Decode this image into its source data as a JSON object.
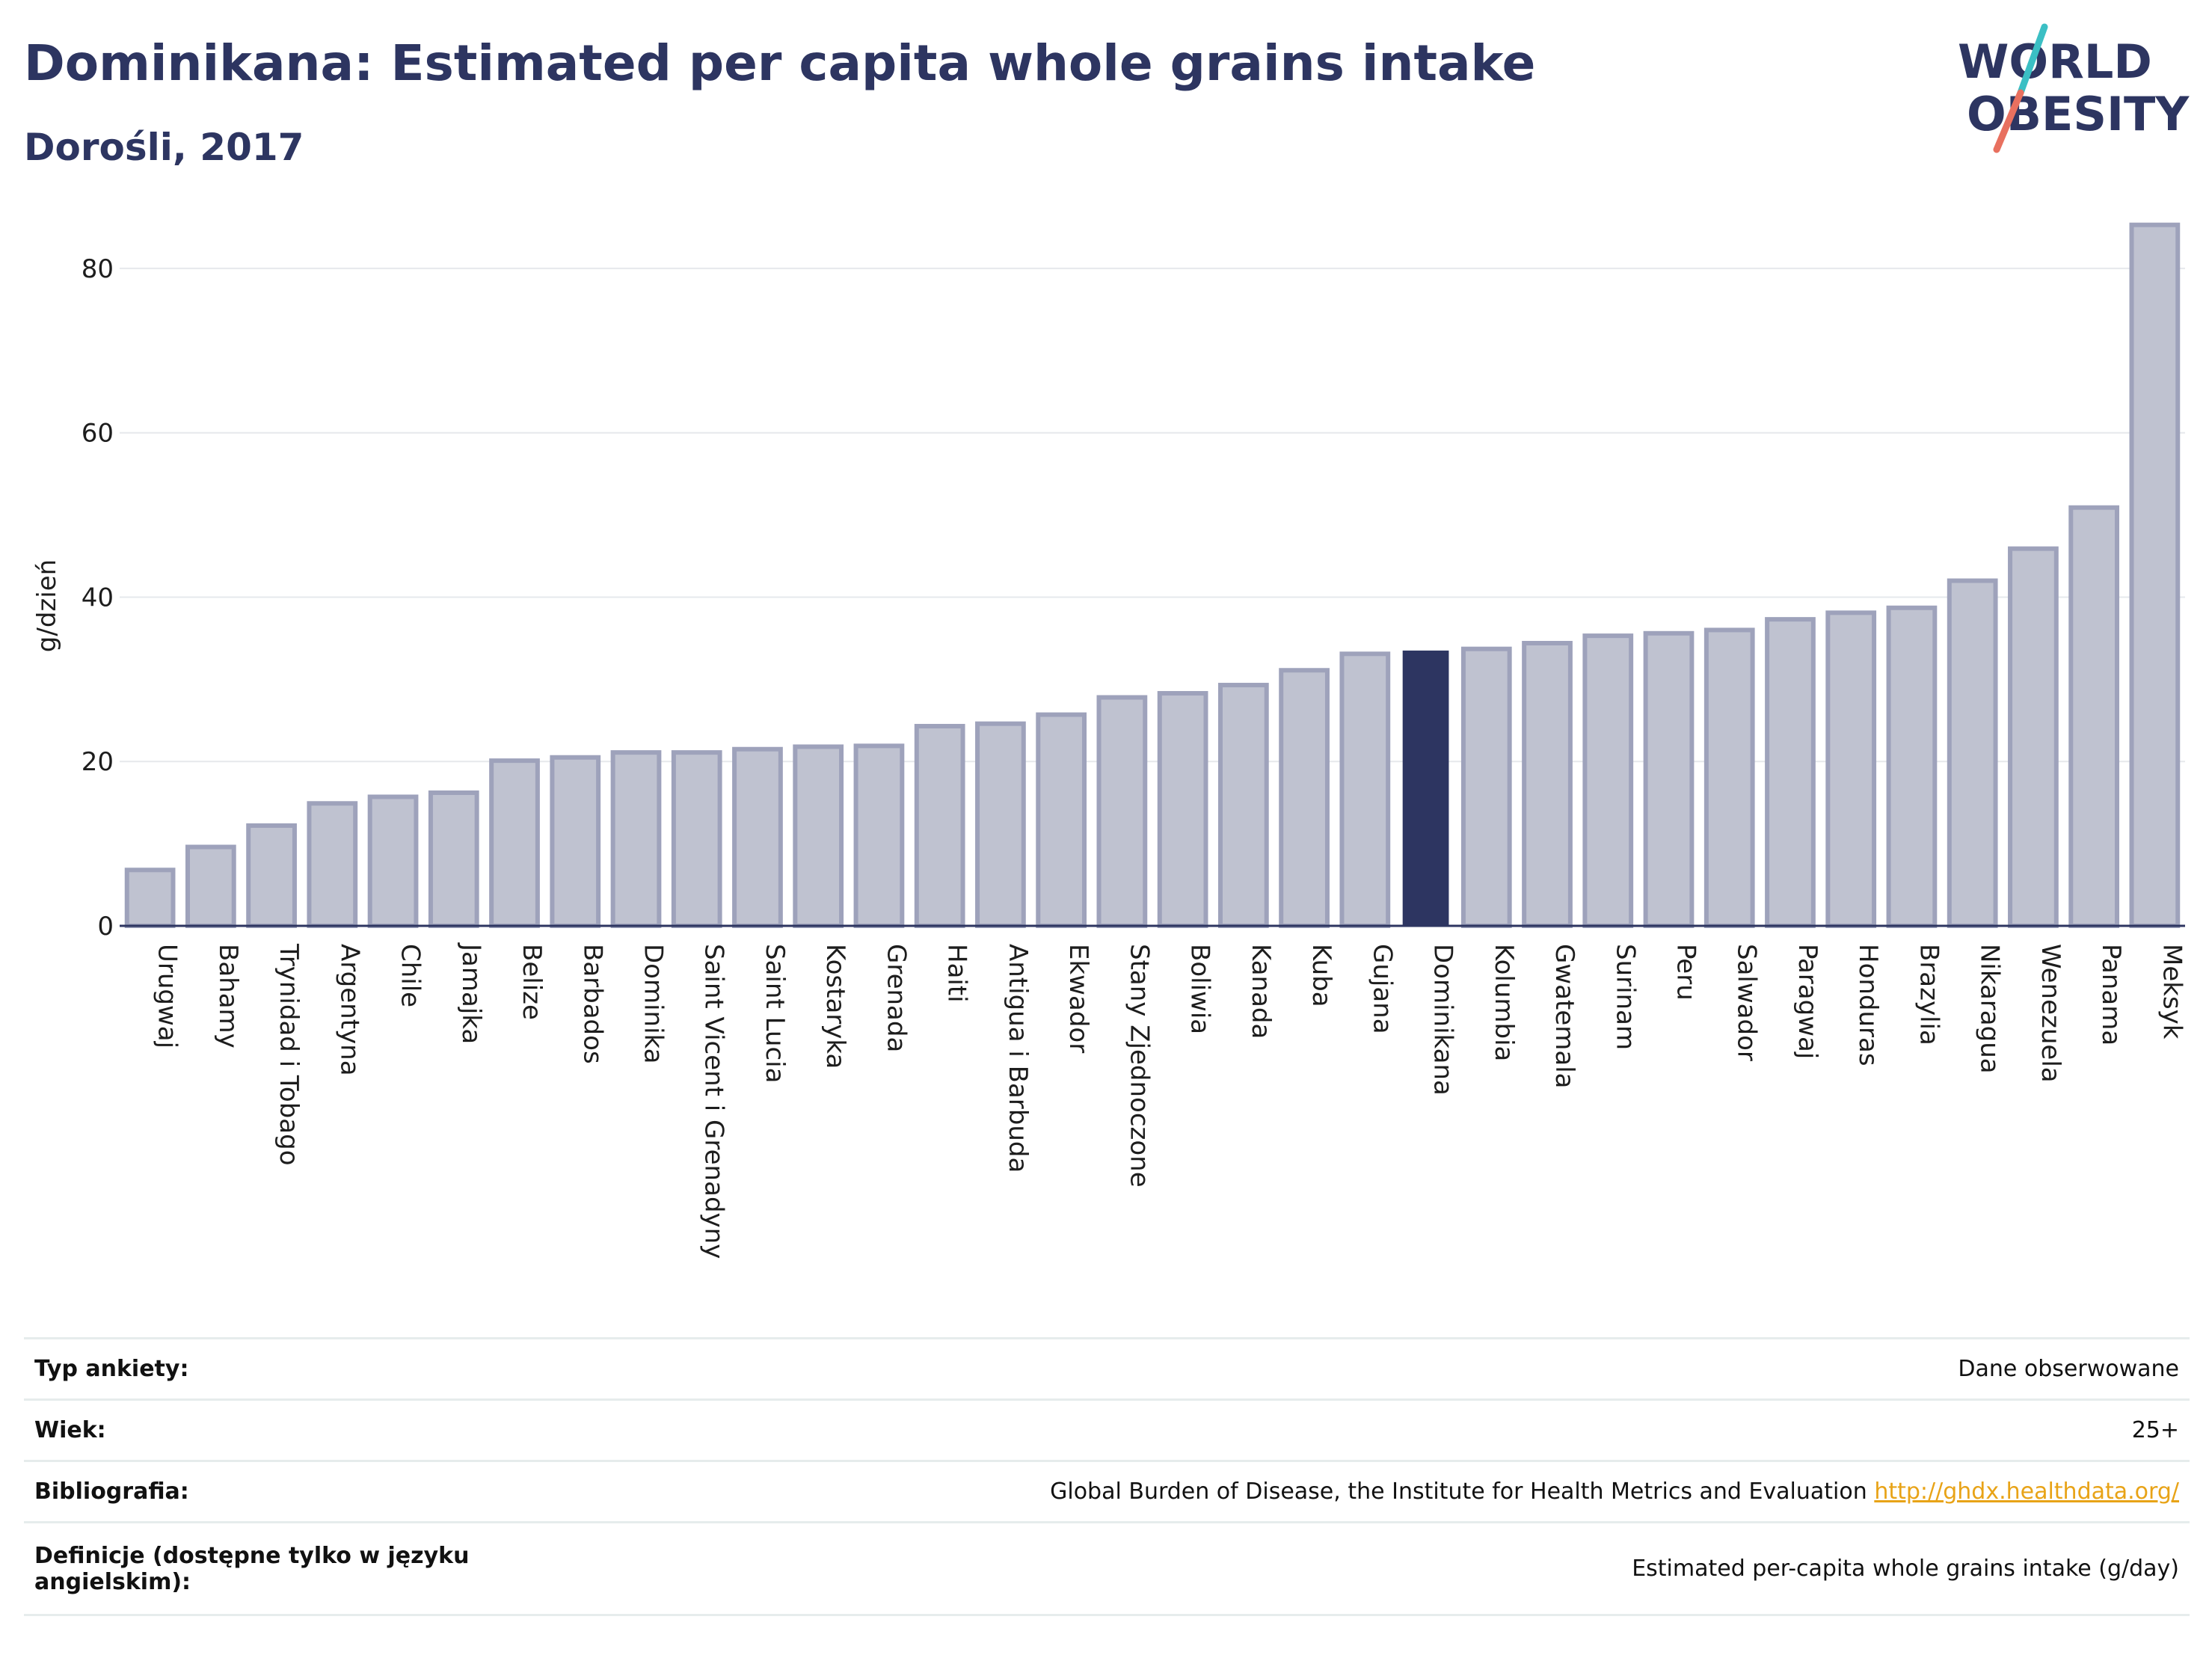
{
  "header": {
    "title": "Dominikana: Estimated per capita whole grains intake",
    "subtitle": "Dorośli, 2017"
  },
  "logo": {
    "line1": "WORLD",
    "line2": "OBESITY",
    "colors": {
      "text": "#2d3561",
      "slash_teal": "#3bbfc4",
      "slash_coral": "#e8705f"
    }
  },
  "chart_data": {
    "type": "bar",
    "ylabel": "g/dzień",
    "ylim": [
      0,
      87
    ],
    "yticks": [
      0,
      20,
      40,
      60,
      80
    ],
    "grid": true,
    "highlight": "Dominikana",
    "colors": {
      "bar": "#bfc2d0",
      "bar_stroke": "#9ea2bb",
      "highlight": "#2d3561",
      "grid": "#e6e8ec",
      "axis": "#2d3561"
    },
    "categories": [
      "Urugwaj",
      "Bahamy",
      "Trynidad i Tobago",
      "Argentyna",
      "Chile",
      "Jamajka",
      "Belize",
      "Barbados",
      "Dominika",
      "Saint Vicent i Grenadyny",
      "Saint Lucia",
      "Kostaryka",
      "Grenada",
      "Haiti",
      "Antigua i Barbuda",
      "Ekwador",
      "Stany Zjednoczone",
      "Boliwia",
      "Kanada",
      "Kuba",
      "Gujana",
      "Dominikana",
      "Kolumbia",
      "Gwatemala",
      "Surinam",
      "Peru",
      "Salwador",
      "Paragwaj",
      "Honduras",
      "Brazylia",
      "Nikaragua",
      "Wenezuela",
      "Panama",
      "Meksyk"
    ],
    "values": [
      6.8,
      9.6,
      12.2,
      14.9,
      15.7,
      16.2,
      20.1,
      20.5,
      21.1,
      21.1,
      21.5,
      21.8,
      21.9,
      24.3,
      24.6,
      25.7,
      27.8,
      28.3,
      29.3,
      31.1,
      33.1,
      33.5,
      33.7,
      34.4,
      35.3,
      35.6,
      36.0,
      37.3,
      38.1,
      38.7,
      42.0,
      45.9,
      50.9,
      85.3
    ]
  },
  "meta": {
    "rows": [
      {
        "label": "Typ ankiety:",
        "value": "Dane obserwowane"
      },
      {
        "label": "Wiek:",
        "value": "25+"
      },
      {
        "label": "Bibliografia:",
        "value": "Global Burden of Disease, the Institute for Health Metrics and Evaluation",
        "link": "http://ghdx.healthdata.org/"
      },
      {
        "label": "Definicje (dostępne tylko w języku angielskim):",
        "value": "Estimated per-capita whole grains intake (g/day)"
      }
    ]
  }
}
